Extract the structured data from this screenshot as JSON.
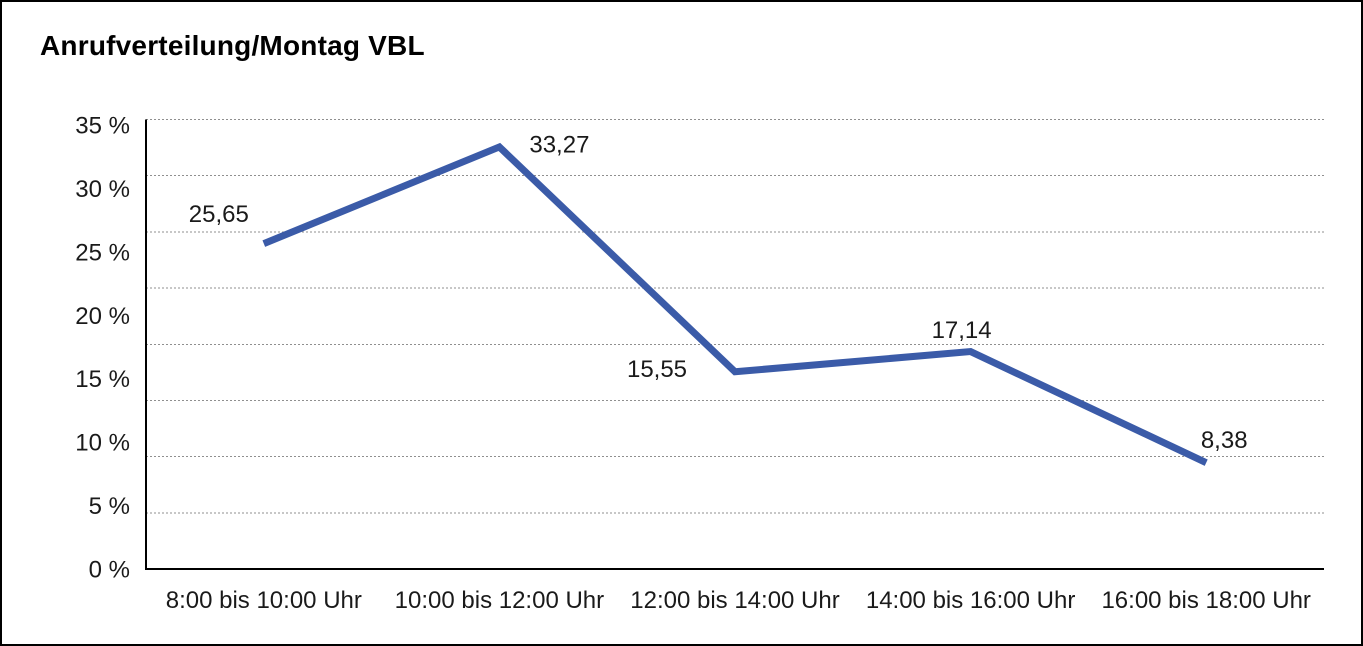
{
  "title": "Anrufverteilung/Montag VBL",
  "chart_data": {
    "type": "line",
    "title": "Anrufverteilung/Montag VBL",
    "categories": [
      "8:00 bis 10:00 Uhr",
      "10:00 bis 12:00 Uhr",
      "12:00 bis 14:00 Uhr",
      "14:00 bis 16:00 Uhr",
      "16:00 bis 18:00 Uhr"
    ],
    "values": [
      25.65,
      33.27,
      15.55,
      17.14,
      8.38
    ],
    "value_labels": [
      "25,65",
      "33,27",
      "15,55",
      "17,14",
      "8,38"
    ],
    "y_ticks": [
      {
        "label": "35 %",
        "value": 35
      },
      {
        "label": "30 %",
        "value": 30
      },
      {
        "label": "25 %",
        "value": 25
      },
      {
        "label": "20 %",
        "value": 20
      },
      {
        "label": "15 %",
        "value": 15
      },
      {
        "label": "10 %",
        "value": 10
      },
      {
        "label": "5 %",
        "value": 5
      },
      {
        "label": "0 %",
        "value": 0
      }
    ],
    "ylim": [
      0,
      35
    ],
    "xlabel": "",
    "ylabel": "",
    "legend": "none",
    "grid": "horizontal-dotted",
    "colors": {
      "line": "#3B5BA8",
      "axis": "#000000",
      "gridline": "#8f8f8f",
      "text": "#1a1a1a",
      "background": "#ffffff",
      "border": "#000000"
    }
  }
}
